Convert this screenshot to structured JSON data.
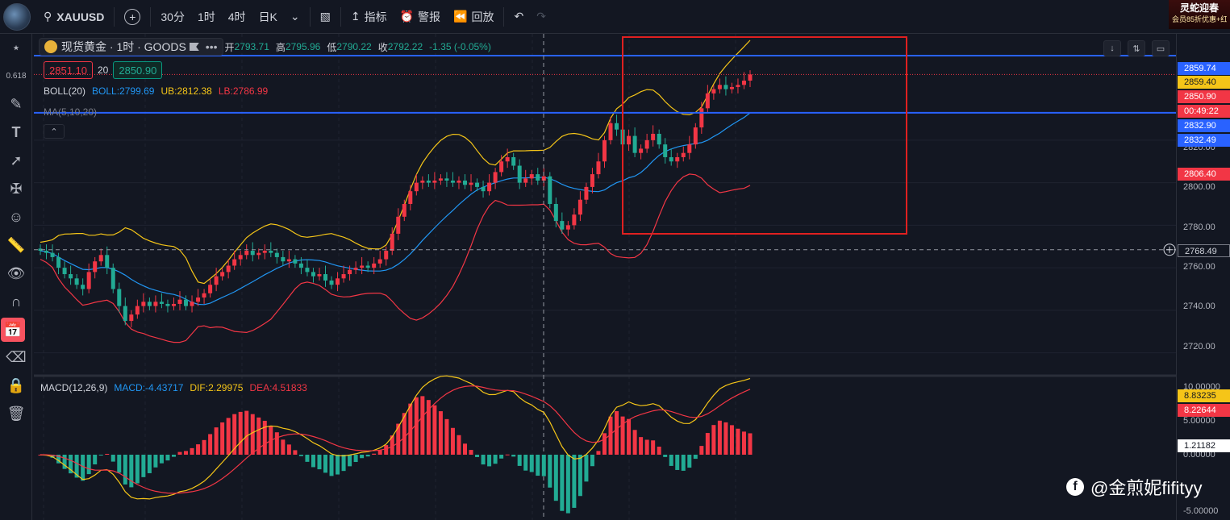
{
  "topbar": {
    "symbol": "XAUUSD",
    "add_label": "+",
    "timeframes": [
      "30分",
      "1时",
      "4时",
      "日K"
    ],
    "active_timeframe": "1时",
    "indicators_label": "指标",
    "alert_label": "警报",
    "replay_label": "回放",
    "promo_line1": "灵蛇迎春",
    "promo_line2": "会员85折优惠+红"
  },
  "legend": {
    "title": "现货黄金 · 1时 · GOODS",
    "ohlc": {
      "open_label": "开",
      "open": "2793.71",
      "high_label": "高",
      "high": "2795.96",
      "low_label": "低",
      "low": "2790.22",
      "close_label": "收",
      "close": "2792.22",
      "change": "-1.35 (-0.05%)"
    },
    "sell_price": "2851.10",
    "spread": "20",
    "buy_price": "2850.90",
    "boll_label": "BOLL(20)",
    "boll_mid": "BOLL:2799.69",
    "boll_ub": "UB:2812.38",
    "boll_lb": "LB:2786.99",
    "ma_label": "MA(5,10,20)",
    "macd_label": "MACD(12,26,9)",
    "macd_val": "MACD:-4.43717",
    "dif_val": "DIF:2.29975",
    "dea_val": "DEA:4.51833"
  },
  "axis": {
    "labels": [
      "2820.00",
      "2800.00",
      "2780.00",
      "2760.00",
      "2740.00",
      "2720.00"
    ],
    "macd_labels": [
      "10.00000",
      "5.00000",
      "0.00000",
      "-5.00000"
    ],
    "tags": [
      {
        "text": "2859.74",
        "color": "#2962ff"
      },
      {
        "text": "2859.40",
        "color": "#f5c518"
      },
      {
        "text": "2850.90",
        "color": "#f23645"
      },
      {
        "text": "00:49:22",
        "color": "#f23645"
      },
      {
        "text": "2832.90",
        "color": "#2962ff"
      },
      {
        "text": "2832.49",
        "color": "#2962ff"
      },
      {
        "text": "2806.40",
        "color": "#f23645"
      },
      {
        "text": "2768.49",
        "color": "#2a2e39"
      }
    ],
    "macd_tags": [
      {
        "text": "8.83235",
        "color": "#f5c518"
      },
      {
        "text": "8.22644",
        "color": "#f23645"
      },
      {
        "text": "1.21182",
        "color": "#ffffff"
      }
    ]
  },
  "watermark": "@金煎妮fifityy",
  "colors": {
    "up": "#f23645",
    "down": "#22ab94",
    "boll_mid": "#2196f3",
    "boll_ub": "#f5c518",
    "boll_lb": "#f23645",
    "hline": "#2962ff",
    "box": "#e02020"
  },
  "chart_data": {
    "type": "candlestick",
    "price_range": [
      2710,
      2870
    ],
    "horizontal_lines": [
      2859.74,
      2832.9
    ],
    "crosshair_price": 2768.49,
    "closes": [
      2768,
      2767,
      2765,
      2760,
      2757,
      2755,
      2752,
      2750,
      2758,
      2763,
      2766,
      2760,
      2750,
      2742,
      2735,
      2738,
      2742,
      2744,
      2742,
      2744,
      2743,
      2742,
      2743,
      2745,
      2742,
      2744,
      2746,
      2748,
      2752,
      2756,
      2758,
      2761,
      2764,
      2766,
      2768,
      2766,
      2767,
      2768,
      2767,
      2765,
      2763,
      2764,
      2762,
      2760,
      2758,
      2756,
      2757,
      2754,
      2752,
      2755,
      2757,
      2759,
      2760,
      2761,
      2760,
      2762,
      2764,
      2768,
      2776,
      2784,
      2790,
      2796,
      2800,
      2801,
      2800,
      2801,
      2802,
      2801,
      2800,
      2801,
      2799,
      2800,
      2798,
      2796,
      2800,
      2805,
      2810,
      2812,
      2808,
      2800,
      2802,
      2804,
      2801,
      2803,
      2790,
      2782,
      2778,
      2780,
      2785,
      2792,
      2798,
      2804,
      2810,
      2820,
      2828,
      2825,
      2818,
      2822,
      2814,
      2816,
      2820,
      2823,
      2818,
      2812,
      2810,
      2812,
      2814,
      2818,
      2826,
      2835,
      2842,
      2844,
      2846,
      2844,
      2845,
      2846,
      2848,
      2850.9
    ]
  }
}
